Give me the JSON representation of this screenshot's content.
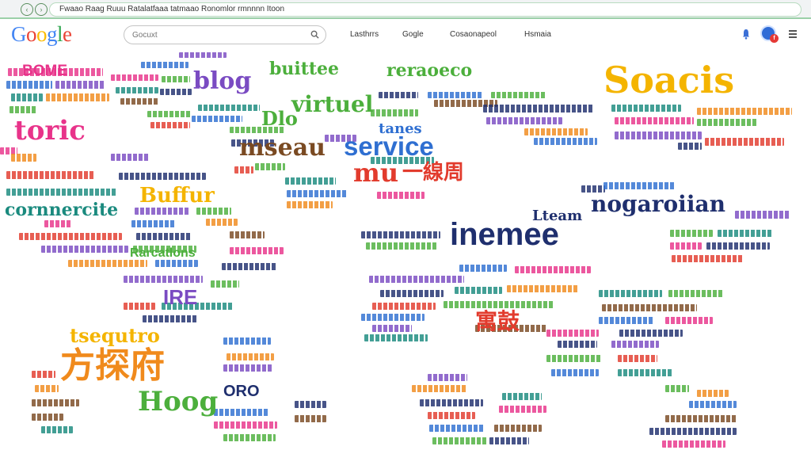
{
  "browser": {
    "address_text": "Fwaao  Raag  Ruuu  Ratalatfaaa tatmaao  Ronomlor  rmnnnn Itoon"
  },
  "header": {
    "logo_text": "Google",
    "search_placeholder": "Gocuxt",
    "links": [
      "Lasthrrs",
      "Gogle",
      "Cosaonapeol",
      "Hsmaia"
    ]
  },
  "wordmap": {
    "words": [
      "BOME",
      "toric",
      "blog",
      "buittee",
      "virtuel",
      "Dlo",
      "reraoeco",
      "tanes",
      "service",
      "mseau",
      "mu",
      "一線周",
      "Soacis",
      "Buffur",
      "cornnercite",
      "Rarcatlons",
      "IRE",
      "nogaroiian",
      "inemee",
      "Lteam",
      "tsequtro",
      "方探府",
      "Hoog",
      "ORO",
      "寓鼓"
    ],
    "colors": {
      "pink": "#e8338a",
      "red": "#e23b2d",
      "orange": "#f08a1c",
      "yellow": "#f4b400",
      "green": "#4caf3c",
      "teal": "#1a8a7e",
      "blue": "#2f6fd1",
      "purple": "#7a4bc2",
      "navy": "#1f2f6e",
      "brown": "#7a4a22"
    }
  }
}
